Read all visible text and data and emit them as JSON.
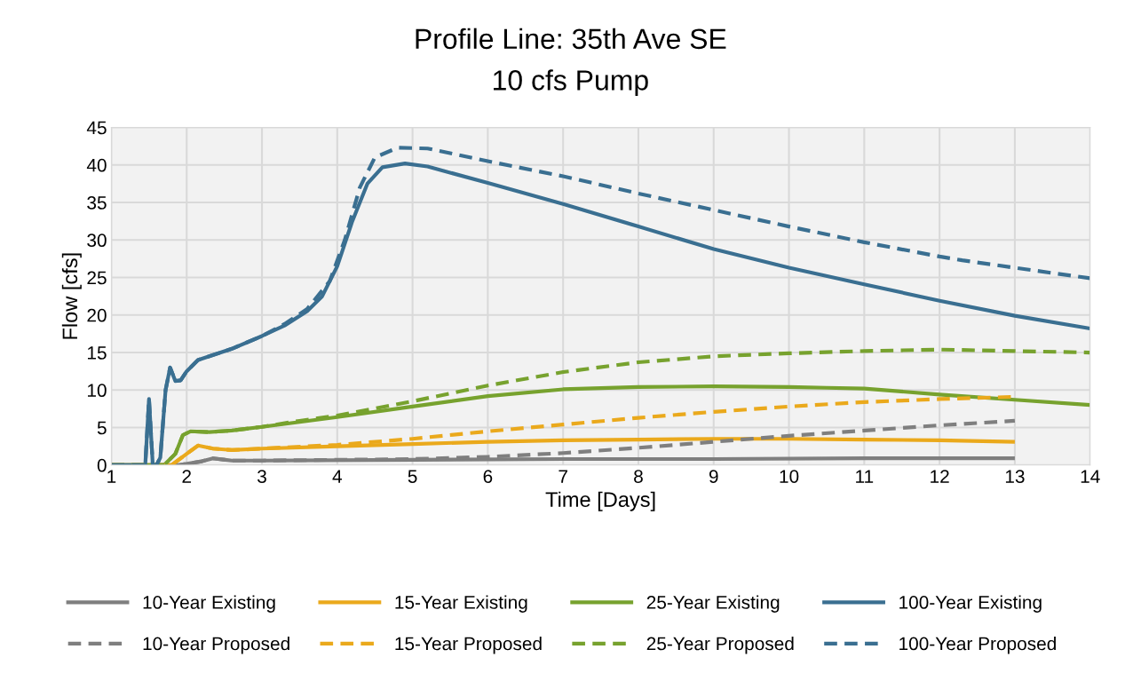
{
  "chart_data": {
    "type": "line",
    "title": "Profile Line: 35th Ave SE",
    "subtitle": "10 cfs Pump",
    "xlabel": "Time [Days]",
    "ylabel": "Flow [cfs]",
    "xlim": [
      1,
      14
    ],
    "xticks": [
      1,
      2,
      3,
      4,
      5,
      6,
      7,
      8,
      9,
      10,
      11,
      12,
      13,
      14
    ],
    "ylim": [
      0,
      45
    ],
    "yticks": [
      0,
      5,
      10,
      15,
      20,
      25,
      30,
      35,
      40,
      45
    ],
    "grid": true,
    "legend": "bottom",
    "marker": "none",
    "series": [
      {
        "name": "10-Year Existing",
        "color": "#7f7f7f",
        "line_style": "solid",
        "x": [
          1,
          1.9,
          2.2,
          2.35,
          2.6,
          3,
          5,
          7,
          9,
          11,
          13
        ],
        "values": [
          0,
          0,
          0.5,
          0.9,
          0.6,
          0.6,
          0.7,
          0.8,
          0.8,
          0.9,
          0.9
        ]
      },
      {
        "name": "15-Year Existing",
        "color": "#eaa91c",
        "line_style": "solid",
        "x": [
          1,
          1.8,
          2,
          2.15,
          2.35,
          2.6,
          3,
          4,
          5,
          6,
          7,
          8,
          9,
          10,
          11,
          12,
          13
        ],
        "values": [
          0,
          0,
          1.5,
          2.6,
          2.2,
          2.0,
          2.2,
          2.5,
          2.8,
          3.1,
          3.3,
          3.4,
          3.5,
          3.5,
          3.4,
          3.3,
          3.1
        ]
      },
      {
        "name": "25-Year Existing",
        "color": "#77a22e",
        "line_style": "solid",
        "x": [
          1,
          1.7,
          1.85,
          1.95,
          2.05,
          2.3,
          2.6,
          3,
          4,
          5,
          6,
          7,
          8,
          9,
          10,
          10.5,
          11,
          12,
          13,
          14
        ],
        "values": [
          0,
          0,
          1.5,
          4,
          4.5,
          4.4,
          4.6,
          5.1,
          6.4,
          7.8,
          9.2,
          10.1,
          10.4,
          10.5,
          10.4,
          10.3,
          10.2,
          9.4,
          8.7,
          8.0
        ]
      },
      {
        "name": "100-Year Existing",
        "color": "#3a6f91",
        "line_style": "solid",
        "x": [
          1,
          1.45,
          1.5,
          1.55,
          1.6,
          1.65,
          1.72,
          1.78,
          1.85,
          1.92,
          2,
          2.15,
          2.3,
          2.6,
          3,
          3.3,
          3.6,
          3.8,
          4,
          4.2,
          4.4,
          4.6,
          4.9,
          5.2,
          6,
          7,
          8,
          9,
          10,
          11,
          12,
          13,
          14
        ],
        "values": [
          0,
          0,
          8.8,
          0,
          0,
          1,
          10,
          13,
          11.2,
          11.3,
          12.5,
          14,
          14.5,
          15.5,
          17.2,
          18.6,
          20.5,
          22.5,
          26.5,
          32.5,
          37.5,
          39.7,
          40.2,
          39.8,
          37.6,
          34.8,
          31.8,
          28.8,
          26.3,
          24.1,
          21.9,
          19.9,
          18.2
        ]
      },
      {
        "name": "10-Year Proposed",
        "color": "#7f7f7f",
        "line_style": "dashed",
        "x": [
          1,
          1.9,
          2.2,
          2.35,
          2.6,
          3,
          4,
          5,
          6,
          7,
          8,
          9,
          10,
          11,
          12,
          13
        ],
        "values": [
          0,
          0,
          0.5,
          0.9,
          0.6,
          0.6,
          0.7,
          0.8,
          1.1,
          1.6,
          2.3,
          3.1,
          3.9,
          4.6,
          5.3,
          5.9
        ]
      },
      {
        "name": "15-Year Proposed",
        "color": "#eaa91c",
        "line_style": "dashed",
        "x": [
          1,
          1.8,
          2,
          2.15,
          2.35,
          2.6,
          3,
          4,
          5,
          6,
          7,
          8,
          9,
          10,
          11,
          12,
          13
        ],
        "values": [
          0,
          0,
          1.5,
          2.6,
          2.2,
          2.0,
          2.2,
          2.7,
          3.5,
          4.5,
          5.4,
          6.3,
          7.1,
          7.8,
          8.4,
          8.8,
          9.1
        ]
      },
      {
        "name": "25-Year Proposed",
        "color": "#77a22e",
        "line_style": "dashed",
        "x": [
          1,
          1.7,
          1.85,
          1.95,
          2.05,
          2.3,
          2.6,
          3,
          3.5,
          4,
          5,
          6,
          7,
          8,
          9,
          10,
          11,
          12,
          13,
          14
        ],
        "values": [
          0,
          0,
          1.5,
          4,
          4.5,
          4.4,
          4.6,
          5.1,
          5.9,
          6.6,
          8.5,
          10.6,
          12.4,
          13.7,
          14.5,
          14.9,
          15.2,
          15.4,
          15.2,
          15.0
        ]
      },
      {
        "name": "100-Year Proposed",
        "color": "#3a6f91",
        "line_style": "dashed",
        "x": [
          1,
          1.45,
          1.5,
          1.55,
          1.6,
          1.65,
          1.72,
          1.78,
          1.85,
          1.92,
          2,
          2.15,
          2.3,
          2.6,
          3,
          3.3,
          3.6,
          3.9,
          4.1,
          4.3,
          4.5,
          4.8,
          5.2,
          6,
          7,
          8,
          9,
          10,
          11,
          12,
          12.3,
          13,
          14
        ],
        "values": [
          0,
          0,
          8.8,
          0,
          0,
          1,
          10,
          13,
          11.2,
          11.3,
          12.5,
          14,
          14.5,
          15.5,
          17.2,
          18.8,
          20.8,
          24.5,
          30,
          37,
          41,
          42.3,
          42.2,
          40.5,
          38.5,
          36.2,
          34,
          31.8,
          29.7,
          27.8,
          27.3,
          26.3,
          24.9
        ]
      }
    ]
  }
}
